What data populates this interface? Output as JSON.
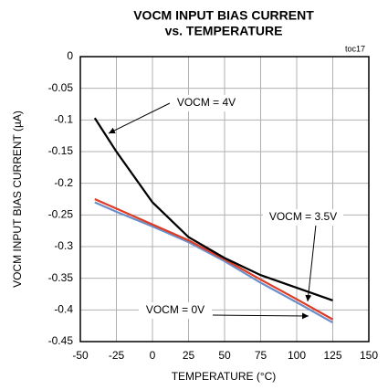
{
  "chart_data": {
    "type": "line",
    "title": "VOCM INPUT BIAS CURRENT",
    "subtitle": "vs. TEMPERATURE",
    "annotation": "toc17",
    "x_label": "TEMPERATURE (°C)",
    "y_label": "VOCM INPUT BIAS CURRENT (µA)",
    "x": [
      -40,
      -25,
      0,
      25,
      50,
      75,
      100,
      125
    ],
    "series": [
      {
        "name": "VOCM = 4V",
        "color": "#000000",
        "values": [
          -0.097,
          -0.15,
          -0.23,
          -0.285,
          -0.318,
          -0.345,
          -0.365,
          -0.385
        ]
      },
      {
        "name": "VOCM = 3.5V",
        "color": "#e03a24",
        "values": [
          -0.225,
          -0.24,
          -0.265,
          -0.29,
          -0.32,
          -0.352,
          -0.383,
          -0.415
        ]
      },
      {
        "name": "VOCM = 0V",
        "color": "#6a8fc8",
        "values": [
          -0.23,
          -0.245,
          -0.268,
          -0.293,
          -0.323,
          -0.357,
          -0.388,
          -0.42
        ]
      }
    ],
    "xlim": [
      -50,
      150
    ],
    "xticks": [
      -50,
      -25,
      0,
      25,
      50,
      75,
      100,
      125,
      150
    ],
    "ylim": [
      -0.45,
      0
    ],
    "yticks": [
      0,
      -0.05,
      -0.1,
      -0.15,
      -0.2,
      -0.25,
      -0.3,
      -0.35,
      -0.4,
      -0.45
    ],
    "grid": true
  }
}
